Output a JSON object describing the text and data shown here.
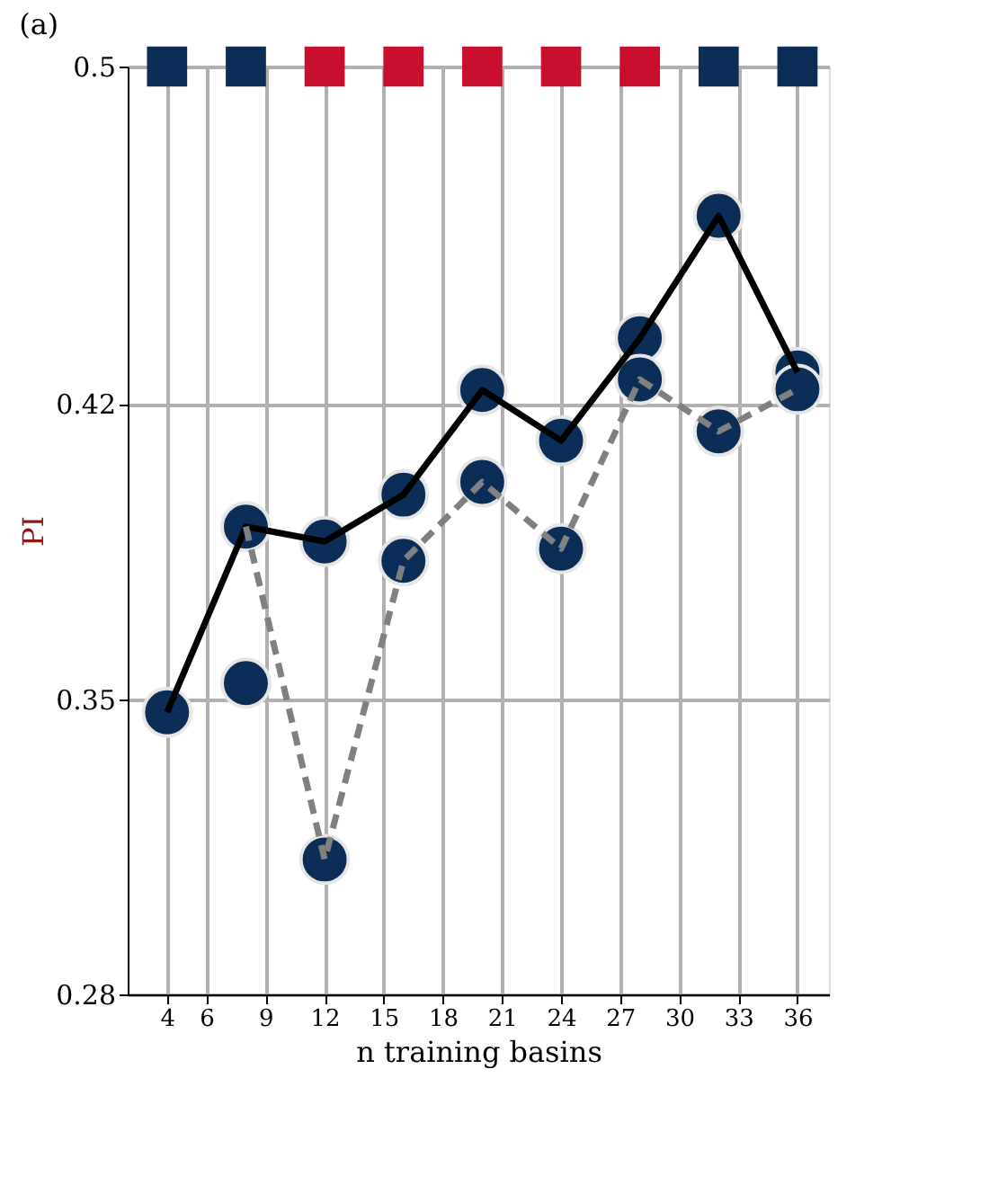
{
  "chart_data": {
    "type": "line",
    "title": "(a)",
    "xlabel": "n training basins",
    "ylabel": "PI",
    "x": [
      4,
      8,
      12,
      16,
      20,
      24,
      28,
      32,
      36
    ],
    "xlim": [
      2,
      37.6
    ],
    "ylim": [
      0.28,
      0.5
    ],
    "xticks": [
      4,
      6,
      9,
      12,
      15,
      18,
      21,
      24,
      27,
      30,
      33,
      36
    ],
    "yticks": [
      0.28,
      0.35,
      0.42,
      0.5
    ],
    "grid": true,
    "series": [
      {
        "color": "#000000",
        "line_style": "solid",
        "marker": "none",
        "values": [
          0.3469,
          0.3909,
          0.3874,
          0.3985,
          0.4233,
          0.4113,
          0.4356,
          0.4646,
          0.4275
        ]
      },
      {
        "color": "#808080",
        "line_style": "dashed",
        "marker": "none",
        "values": [
          null,
          0.3909,
          0.312,
          0.3828,
          0.4015,
          0.3857,
          0.4258,
          0.4135,
          0.4235
        ]
      },
      {
        "type": "scatter",
        "marker": "circle",
        "color": "#0b2e59",
        "values": [
          0.3469,
          0.3909,
          0.3874,
          0.3985,
          0.4233,
          0.4113,
          0.4356,
          0.4646,
          0.4275
        ]
      },
      {
        "type": "scatter",
        "marker": "circle",
        "color": "#0b2e59",
        "values": [
          null,
          0.3538,
          0.312,
          0.3828,
          0.4015,
          0.3857,
          0.4258,
          0.4135,
          0.4235
        ]
      },
      {
        "type": "scatter",
        "marker": "square",
        "color": "#0b2e59",
        "values": [
          0.5,
          0.5,
          null,
          null,
          null,
          null,
          null,
          0.5,
          0.5
        ]
      },
      {
        "type": "scatter",
        "marker": "square",
        "color": "#c8102e",
        "values": [
          null,
          null,
          0.5,
          0.5,
          0.5,
          0.5,
          0.5,
          null,
          null
        ]
      }
    ]
  }
}
